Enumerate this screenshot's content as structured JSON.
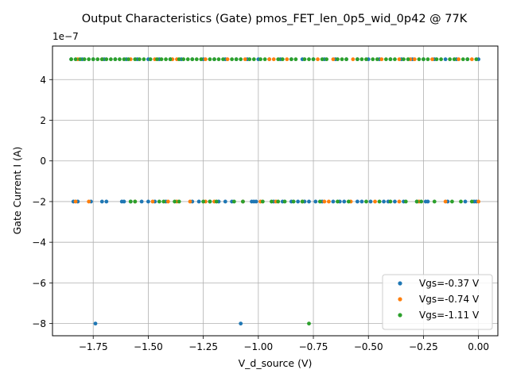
{
  "chart_data": {
    "type": "scatter",
    "title": "Output Characteristics (Gate) pmos_FET_len_0p5_wid_0p42 @ 77K",
    "xlabel": "V_d_source (V)",
    "ylabel": "Gate Current I (A)",
    "y_offset_label": "1e−7",
    "y_scale": 1e-07,
    "xlim": [
      -1.935,
      0.088
    ],
    "ylim": [
      -8.6e-07,
      5.65e-07
    ],
    "x_ticks": [
      -1.75,
      -1.5,
      -1.25,
      -1.0,
      -0.75,
      -0.5,
      -0.25,
      0.0
    ],
    "x_tick_labels": [
      "−1.75",
      "−1.50",
      "−1.25",
      "−1.00",
      "−0.75",
      "−0.50",
      "−0.25",
      "0.00"
    ],
    "y_ticks": [
      -8e-07,
      -6e-07,
      -4e-07,
      -2e-07,
      0,
      2e-07,
      4e-07
    ],
    "y_tick_labels": [
      "−8",
      "−6",
      "−4",
      "−2",
      "0",
      "2",
      "4"
    ],
    "grid": true,
    "legend_position": "lower-right",
    "series": [
      {
        "name": "Vgs=-0.37 V",
        "color": "#1f77b4",
        "points": [
          [
            -1.85,
            5e-07
          ],
          [
            -1.8,
            5e-07
          ],
          [
            -1.75,
            5e-07
          ],
          [
            -1.7,
            5e-07
          ],
          [
            -1.65,
            5e-07
          ],
          [
            -1.6,
            5e-07
          ],
          [
            -1.55,
            5e-07
          ],
          [
            -1.5,
            5e-07
          ],
          [
            -1.45,
            5e-07
          ],
          [
            -1.4,
            5e-07
          ],
          [
            -1.35,
            5e-07
          ],
          [
            -1.3,
            5e-07
          ],
          [
            -1.25,
            5e-07
          ],
          [
            -1.2,
            5e-07
          ],
          [
            -1.15,
            5e-07
          ],
          [
            -1.1,
            5e-07
          ],
          [
            -1.05,
            5e-07
          ],
          [
            -1.0,
            5e-07
          ],
          [
            -0.95,
            5e-07
          ],
          [
            -0.9,
            5e-07
          ],
          [
            -0.85,
            5e-07
          ],
          [
            -0.8,
            5e-07
          ],
          [
            -0.75,
            5e-07
          ],
          [
            -0.7,
            5e-07
          ],
          [
            -0.65,
            5e-07
          ],
          [
            -0.6,
            5e-07
          ],
          [
            -0.55,
            5e-07
          ],
          [
            -0.5,
            5e-07
          ],
          [
            -0.45,
            5e-07
          ],
          [
            -0.4,
            5e-07
          ],
          [
            -0.35,
            5e-07
          ],
          [
            -0.3,
            5e-07
          ],
          [
            -0.25,
            5e-07
          ],
          [
            -0.2,
            5e-07
          ],
          [
            -0.15,
            5e-07
          ],
          [
            -0.1,
            5e-07
          ],
          [
            -0.05,
            5e-07
          ],
          [
            0.0,
            5e-07
          ],
          [
            -1.84,
            -2e-07
          ],
          [
            -1.82,
            -2e-07
          ],
          [
            -1.76,
            -2e-07
          ],
          [
            -1.71,
            -2e-07
          ],
          [
            -1.69,
            -2e-07
          ],
          [
            -1.62,
            -2e-07
          ],
          [
            -1.61,
            -2e-07
          ],
          [
            -1.58,
            -2e-07
          ],
          [
            -1.53,
            -2e-07
          ],
          [
            -1.5,
            -2e-07
          ],
          [
            -1.47,
            -2e-07
          ],
          [
            -1.42,
            -2e-07
          ],
          [
            -1.3,
            -2e-07
          ],
          [
            -1.27,
            -2e-07
          ],
          [
            -1.22,
            -2e-07
          ],
          [
            -1.18,
            -2e-07
          ],
          [
            -1.15,
            -2e-07
          ],
          [
            -1.12,
            -2e-07
          ],
          [
            -1.07,
            -2e-07
          ],
          [
            -1.03,
            -2e-07
          ],
          [
            -1.02,
            -2e-07
          ],
          [
            -1.01,
            -2e-07
          ],
          [
            -0.93,
            -2e-07
          ],
          [
            -0.89,
            -2e-07
          ],
          [
            -0.85,
            -2e-07
          ],
          [
            -0.82,
            -2e-07
          ],
          [
            -0.79,
            -2e-07
          ],
          [
            -0.77,
            -2e-07
          ],
          [
            -0.74,
            -2e-07
          ],
          [
            -0.71,
            -2e-07
          ],
          [
            -0.66,
            -2e-07
          ],
          [
            -0.63,
            -2e-07
          ],
          [
            -0.61,
            -2e-07
          ],
          [
            -0.55,
            -2e-07
          ],
          [
            -0.53,
            -2e-07
          ],
          [
            -0.49,
            -2e-07
          ],
          [
            -0.43,
            -2e-07
          ],
          [
            -0.41,
            -2e-07
          ],
          [
            -0.38,
            -2e-07
          ],
          [
            -0.34,
            -2e-07
          ],
          [
            -0.28,
            -2e-07
          ],
          [
            -0.24,
            -2e-07
          ],
          [
            -0.23,
            -2e-07
          ],
          [
            -0.14,
            -2e-07
          ],
          [
            -0.06,
            -2e-07
          ],
          [
            -0.02,
            -2e-07
          ],
          [
            -0.01,
            -2e-07
          ],
          [
            -1.74,
            -8e-07
          ],
          [
            -1.08,
            -8e-07
          ]
        ]
      },
      {
        "name": "Vgs=-0.74 V",
        "color": "#ff7f0e",
        "points": [
          [
            -1.82,
            5e-07
          ],
          [
            -1.71,
            5e-07
          ],
          [
            -1.58,
            5e-07
          ],
          [
            -1.47,
            5e-07
          ],
          [
            -1.39,
            5e-07
          ],
          [
            -1.37,
            5e-07
          ],
          [
            -1.24,
            5e-07
          ],
          [
            -1.14,
            5e-07
          ],
          [
            -1.06,
            5e-07
          ],
          [
            -0.95,
            5e-07
          ],
          [
            -0.93,
            5e-07
          ],
          [
            -0.87,
            5e-07
          ],
          [
            -0.73,
            5e-07
          ],
          [
            -0.66,
            5e-07
          ],
          [
            -0.57,
            5e-07
          ],
          [
            -0.44,
            5e-07
          ],
          [
            -0.36,
            5e-07
          ],
          [
            -0.31,
            5e-07
          ],
          [
            -0.29,
            5e-07
          ],
          [
            -0.21,
            5e-07
          ],
          [
            -0.09,
            5e-07
          ],
          [
            -0.03,
            5e-07
          ],
          [
            -1.83,
            -2e-07
          ],
          [
            -1.77,
            -2e-07
          ],
          [
            -1.56,
            -2e-07
          ],
          [
            -1.48,
            -2e-07
          ],
          [
            -1.41,
            -2e-07
          ],
          [
            -1.37,
            -2e-07
          ],
          [
            -1.31,
            -2e-07
          ],
          [
            -1.24,
            -2e-07
          ],
          [
            -1.2,
            -2e-07
          ],
          [
            -1.07,
            -2e-07
          ],
          [
            -0.99,
            -2e-07
          ],
          [
            -0.92,
            -2e-07
          ],
          [
            -0.8,
            -2e-07
          ],
          [
            -0.7,
            -2e-07
          ],
          [
            -0.68,
            -2e-07
          ],
          [
            -0.58,
            -2e-07
          ],
          [
            -0.47,
            -2e-07
          ],
          [
            -0.36,
            -2e-07
          ],
          [
            -0.27,
            -2e-07
          ],
          [
            -0.15,
            -2e-07
          ],
          [
            0.0,
            -2e-07
          ]
        ]
      },
      {
        "name": "Vgs=-1.11 V",
        "color": "#2ca02c",
        "points": [
          [
            -1.85,
            5e-07
          ],
          [
            -1.83,
            5e-07
          ],
          [
            -1.81,
            5e-07
          ],
          [
            -1.79,
            5e-07
          ],
          [
            -1.77,
            5e-07
          ],
          [
            -1.75,
            5e-07
          ],
          [
            -1.73,
            5e-07
          ],
          [
            -1.71,
            5e-07
          ],
          [
            -1.69,
            5e-07
          ],
          [
            -1.67,
            5e-07
          ],
          [
            -1.65,
            5e-07
          ],
          [
            -1.63,
            5e-07
          ],
          [
            -1.61,
            5e-07
          ],
          [
            -1.59,
            5e-07
          ],
          [
            -1.56,
            5e-07
          ],
          [
            -1.54,
            5e-07
          ],
          [
            -1.52,
            5e-07
          ],
          [
            -1.49,
            5e-07
          ],
          [
            -1.46,
            5e-07
          ],
          [
            -1.44,
            5e-07
          ],
          [
            -1.42,
            5e-07
          ],
          [
            -1.4,
            5e-07
          ],
          [
            -1.36,
            5e-07
          ],
          [
            -1.34,
            5e-07
          ],
          [
            -1.32,
            5e-07
          ],
          [
            -1.3,
            5e-07
          ],
          [
            -1.28,
            5e-07
          ],
          [
            -1.26,
            5e-07
          ],
          [
            -1.22,
            5e-07
          ],
          [
            -1.2,
            5e-07
          ],
          [
            -1.18,
            5e-07
          ],
          [
            -1.16,
            5e-07
          ],
          [
            -1.12,
            5e-07
          ],
          [
            -1.1,
            5e-07
          ],
          [
            -1.08,
            5e-07
          ],
          [
            -1.04,
            5e-07
          ],
          [
            -1.02,
            5e-07
          ],
          [
            -0.99,
            5e-07
          ],
          [
            -0.97,
            5e-07
          ],
          [
            -0.91,
            5e-07
          ],
          [
            -0.89,
            5e-07
          ],
          [
            -0.85,
            5e-07
          ],
          [
            -0.83,
            5e-07
          ],
          [
            -0.79,
            5e-07
          ],
          [
            -0.77,
            5e-07
          ],
          [
            -0.75,
            5e-07
          ],
          [
            -0.71,
            5e-07
          ],
          [
            -0.69,
            5e-07
          ],
          [
            -0.64,
            5e-07
          ],
          [
            -0.62,
            5e-07
          ],
          [
            -0.6,
            5e-07
          ],
          [
            -0.55,
            5e-07
          ],
          [
            -0.53,
            5e-07
          ],
          [
            -0.51,
            5e-07
          ],
          [
            -0.48,
            5e-07
          ],
          [
            -0.46,
            5e-07
          ],
          [
            -0.42,
            5e-07
          ],
          [
            -0.4,
            5e-07
          ],
          [
            -0.38,
            5e-07
          ],
          [
            -0.34,
            5e-07
          ],
          [
            -0.32,
            5e-07
          ],
          [
            -0.27,
            5e-07
          ],
          [
            -0.25,
            5e-07
          ],
          [
            -0.23,
            5e-07
          ],
          [
            -0.19,
            5e-07
          ],
          [
            -0.17,
            5e-07
          ],
          [
            -0.13,
            5e-07
          ],
          [
            -0.11,
            5e-07
          ],
          [
            -0.07,
            5e-07
          ],
          [
            -0.05,
            5e-07
          ],
          [
            -0.01,
            5e-07
          ],
          [
            -1.58,
            -2e-07
          ],
          [
            -1.56,
            -2e-07
          ],
          [
            -1.45,
            -2e-07
          ],
          [
            -1.43,
            -2e-07
          ],
          [
            -1.38,
            -2e-07
          ],
          [
            -1.36,
            -2e-07
          ],
          [
            -1.25,
            -2e-07
          ],
          [
            -1.22,
            -2e-07
          ],
          [
            -1.19,
            -2e-07
          ],
          [
            -1.11,
            -2e-07
          ],
          [
            -1.07,
            -2e-07
          ],
          [
            -0.98,
            -2e-07
          ],
          [
            -0.94,
            -2e-07
          ],
          [
            -0.91,
            -2e-07
          ],
          [
            -0.88,
            -2e-07
          ],
          [
            -0.84,
            -2e-07
          ],
          [
            -0.8,
            -2e-07
          ],
          [
            -0.72,
            -2e-07
          ],
          [
            -0.64,
            -2e-07
          ],
          [
            -0.59,
            -2e-07
          ],
          [
            -0.51,
            -2e-07
          ],
          [
            -0.45,
            -2e-07
          ],
          [
            -0.4,
            -2e-07
          ],
          [
            -0.33,
            -2e-07
          ],
          [
            -0.28,
            -2e-07
          ],
          [
            -0.26,
            -2e-07
          ],
          [
            -0.2,
            -2e-07
          ],
          [
            -0.12,
            -2e-07
          ],
          [
            -0.08,
            -2e-07
          ],
          [
            -0.03,
            -2e-07
          ],
          [
            -0.77,
            -8e-07
          ]
        ]
      }
    ]
  }
}
